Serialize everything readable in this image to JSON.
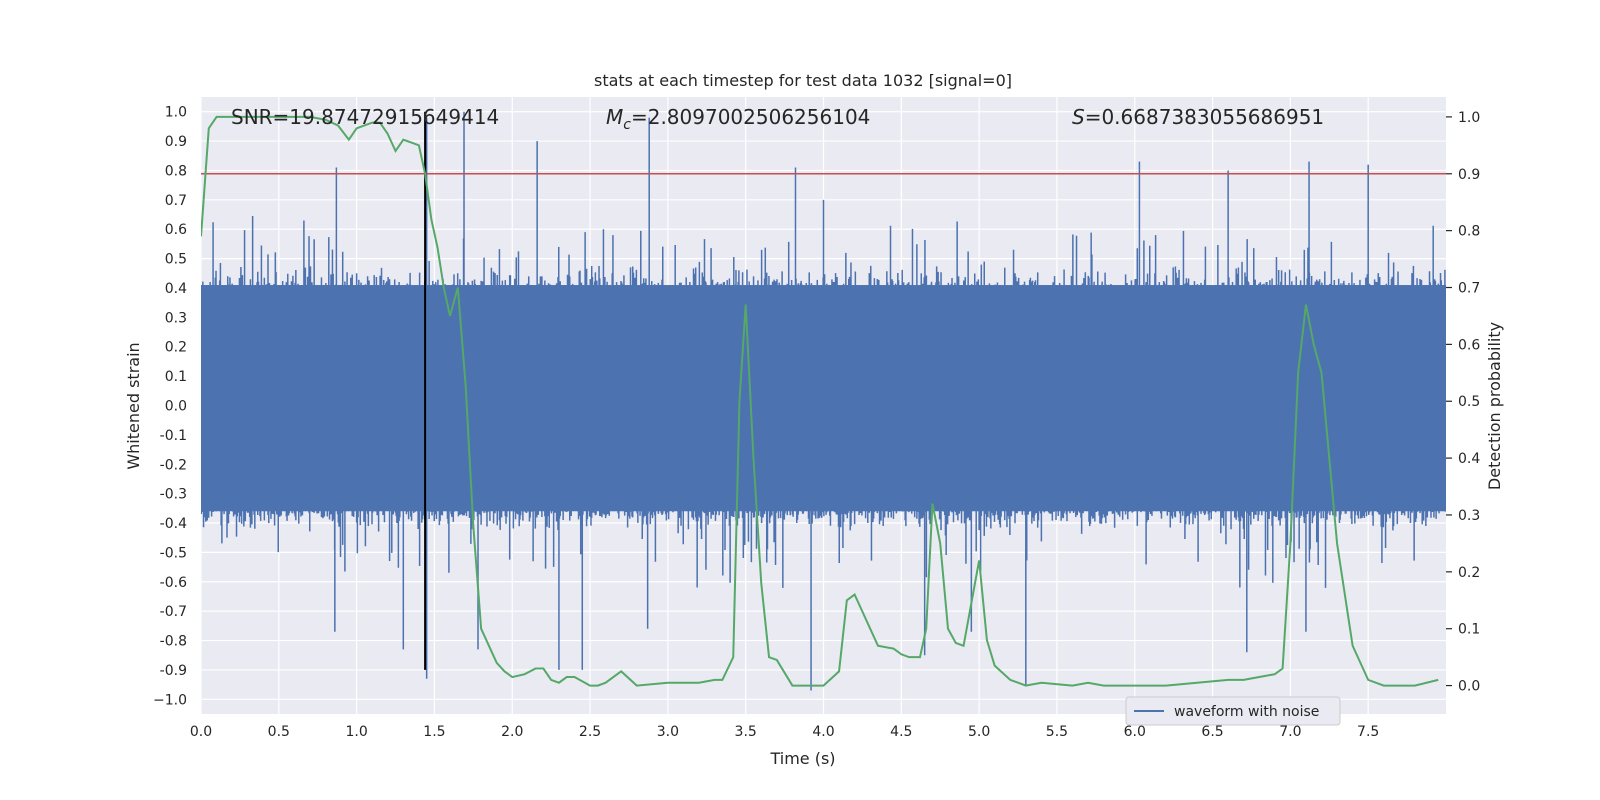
{
  "chart_data": {
    "type": "line",
    "title": "stats at each timestep for test data 1032 [signal=0]",
    "xlabel": "Time (s)",
    "ylabel_left": "Whitened strain",
    "ylabel_right": "Detection probability",
    "xlim": [
      0,
      8
    ],
    "ylim_left": [
      -1.05,
      1.05
    ],
    "ylim_right": [
      -0.05,
      1.035
    ],
    "x_ticks": [
      0.0,
      0.5,
      1.0,
      1.5,
      2.0,
      2.5,
      3.0,
      3.5,
      4.0,
      4.5,
      5.0,
      5.5,
      6.0,
      6.5,
      7.0,
      7.5
    ],
    "x_tick_labels": [
      "0.0",
      "0.5",
      "1.0",
      "1.5",
      "2.0",
      "2.5",
      "3.0",
      "3.5",
      "4.0",
      "4.5",
      "5.0",
      "5.5",
      "6.0",
      "6.5",
      "7.0",
      "7.5"
    ],
    "y_left_ticks": [
      1.0,
      0.9,
      0.8,
      0.7,
      0.6,
      0.5,
      0.4,
      0.3,
      0.2,
      0.1,
      0.0,
      -0.1,
      -0.2,
      -0.3,
      -0.4,
      -0.5,
      -0.6,
      -0.7,
      -0.8,
      -0.9,
      -1.0
    ],
    "y_left_tick_labels": [
      "1.0",
      "0.9",
      "0.8",
      "0.7",
      "0.6",
      "0.5",
      "0.4",
      "0.3",
      "0.2",
      "0.1",
      "0.0",
      "-0.1",
      "-0.2",
      "-0.3",
      "-0.4",
      "-0.5",
      "-0.6",
      "-0.7",
      "-0.8",
      "-0.9",
      "−1.0"
    ],
    "y_right_ticks": [
      1.0,
      0.9,
      0.8,
      0.7,
      0.6,
      0.5,
      0.4,
      0.3,
      0.2,
      0.1,
      0.0
    ],
    "y_right_tick_labels": [
      "1.0",
      "0.9",
      "0.8",
      "0.7",
      "0.6",
      "0.5",
      "0.4",
      "0.3",
      "0.2",
      "0.1",
      "0.0"
    ],
    "annotations": {
      "snr": "SNR=19.87472915649414",
      "mc_symbol": "M",
      "mc_subscript": "c",
      "mc_value": "=2.8097002506256104",
      "s_symbol": "S",
      "s_value": "=0.6687383055686951"
    },
    "threshold_line": {
      "axis": "right",
      "y": 0.9,
      "color": "#c44e52"
    },
    "vertical_marker": {
      "x": 1.44,
      "y_range": [
        -0.9,
        1.0
      ],
      "color": "#000000"
    },
    "legend": {
      "entries": [
        "waveform with noise"
      ],
      "placement": "lower-right"
    },
    "grid": true,
    "series": [
      {
        "name": "waveform with noise",
        "axis": "left",
        "style": "noise-envelope",
        "color": "#4c72b0",
        "dense_band": [
          -0.36,
          0.41
        ],
        "typical_extent": [
          -0.55,
          0.6
        ],
        "peak_spikes_x": [
          0.87,
          1.45,
          1.69,
          2.16,
          2.88,
          3.82,
          4.0,
          5.3,
          6.03,
          6.6,
          7.12,
          7.5
        ],
        "peak_spikes_y": [
          0.81,
          0.98,
          1.0,
          0.9,
          0.98,
          0.81,
          0.7,
          -0.95,
          0.83,
          0.8,
          0.83,
          0.82
        ],
        "trough_spikes_x": [
          0.86,
          1.3,
          1.45,
          1.78,
          2.3,
          2.45,
          2.87,
          3.92,
          4.65,
          4.95,
          5.3,
          6.72,
          7.1
        ],
        "trough_spikes_y": [
          -0.77,
          -0.83,
          -0.93,
          -0.83,
          -0.9,
          -0.9,
          -0.76,
          -0.97,
          -0.85,
          -0.77,
          -0.95,
          -0.84,
          -0.77
        ]
      },
      {
        "name": "",
        "axis": "right",
        "color": "#55a868",
        "x": [
          0.0,
          0.05,
          0.1,
          0.2,
          0.3,
          0.5,
          0.7,
          0.8,
          0.88,
          0.95,
          1.0,
          1.1,
          1.15,
          1.2,
          1.25,
          1.3,
          1.35,
          1.4,
          1.44,
          1.48,
          1.52,
          1.56,
          1.6,
          1.65,
          1.7,
          1.75,
          1.8,
          1.9,
          1.95,
          2.0,
          2.08,
          2.15,
          2.2,
          2.25,
          2.3,
          2.35,
          2.4,
          2.5,
          2.55,
          2.6,
          2.7,
          2.8,
          3.0,
          3.2,
          3.3,
          3.35,
          3.42,
          3.46,
          3.5,
          3.55,
          3.6,
          3.65,
          3.7,
          3.8,
          3.9,
          4.0,
          4.1,
          4.15,
          4.2,
          4.25,
          4.35,
          4.45,
          4.5,
          4.55,
          4.62,
          4.66,
          4.7,
          4.75,
          4.8,
          4.85,
          4.9,
          5.0,
          5.05,
          5.1,
          5.2,
          5.3,
          5.4,
          5.6,
          5.7,
          5.8,
          5.9,
          6.0,
          6.2,
          6.4,
          6.6,
          6.7,
          6.8,
          6.9,
          6.95,
          7.0,
          7.05,
          7.1,
          7.15,
          7.2,
          7.3,
          7.4,
          7.5,
          7.6,
          7.7,
          7.8,
          7.95
        ],
        "y": [
          0.79,
          0.98,
          1.0,
          1.0,
          1.0,
          1.0,
          1.0,
          0.995,
          0.985,
          0.96,
          0.98,
          0.99,
          0.99,
          0.97,
          0.94,
          0.96,
          0.955,
          0.95,
          0.9,
          0.82,
          0.77,
          0.7,
          0.65,
          0.7,
          0.53,
          0.28,
          0.1,
          0.04,
          0.025,
          0.015,
          0.02,
          0.03,
          0.03,
          0.01,
          0.005,
          0.015,
          0.015,
          0.0,
          0.0,
          0.005,
          0.025,
          0.0,
          0.005,
          0.005,
          0.01,
          0.01,
          0.05,
          0.5,
          0.67,
          0.4,
          0.18,
          0.05,
          0.045,
          0.0,
          0.0,
          0.0,
          0.025,
          0.15,
          0.16,
          0.13,
          0.07,
          0.065,
          0.055,
          0.05,
          0.05,
          0.1,
          0.32,
          0.25,
          0.1,
          0.075,
          0.07,
          0.22,
          0.08,
          0.035,
          0.01,
          0.0,
          0.005,
          0.0,
          0.005,
          0.0,
          0.0,
          0.0,
          0.0,
          0.005,
          0.01,
          0.01,
          0.015,
          0.02,
          0.03,
          0.25,
          0.55,
          0.67,
          0.6,
          0.55,
          0.25,
          0.07,
          0.01,
          0.0,
          0.0,
          0.0,
          0.01
        ]
      }
    ]
  }
}
